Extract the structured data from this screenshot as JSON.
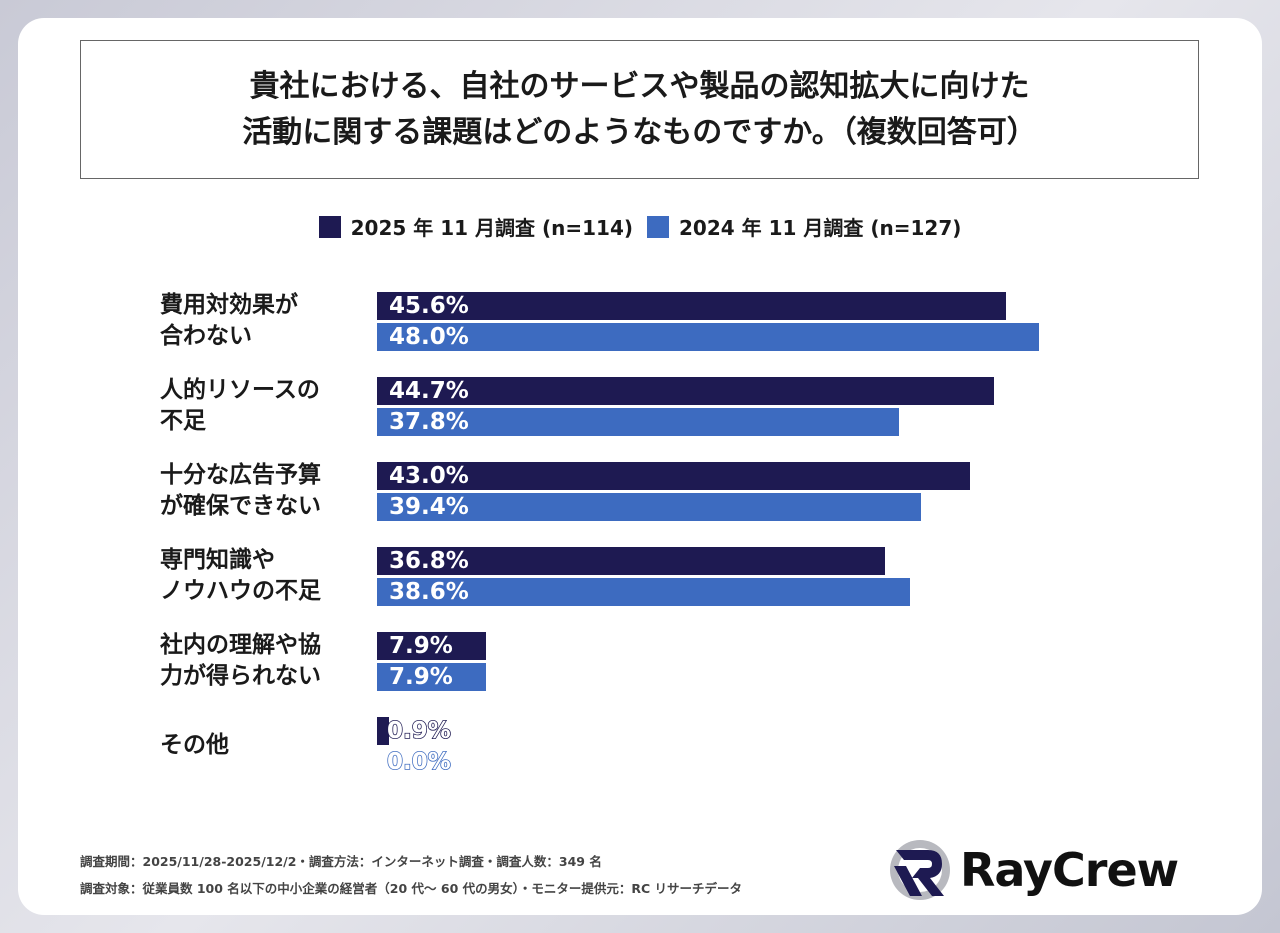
{
  "chart_data": {
    "type": "bar",
    "orientation": "horizontal",
    "title": [
      "貴社における、自社のサービスや製品の認知拡大に向けた",
      "活動に関する課題はどのようなものですか。（複数回答可）"
    ],
    "categories": [
      [
        "費用対効果が",
        "合わない"
      ],
      [
        "人的リソースの",
        "不足"
      ],
      [
        "十分な広告予算",
        "が確保できない"
      ],
      [
        "専門知識や",
        "ノウハウの不足"
      ],
      [
        "社内の理解や協",
        "力が得られない"
      ],
      [
        "その他"
      ]
    ],
    "series": [
      {
        "name": "2025 年 11 月調査 (n=114)",
        "color": "#1e1a52",
        "values": [
          45.6,
          44.7,
          43.0,
          36.8,
          7.9,
          0.9
        ]
      },
      {
        "name": "2024 年 11 月調査 (n=127)",
        "color": "#3d6bc0",
        "values": [
          48.0,
          37.8,
          39.4,
          38.6,
          7.9,
          0.0
        ]
      }
    ],
    "unit": "%",
    "legend": "top-center",
    "grid": false
  },
  "footer": {
    "line1": "調査期間：2025/11/28-2025/12/2・調査方法：インターネット調査・調査人数：349 名",
    "line2": "調査対象：従業員数 100 名以下の中小企業の経営者（20 代～ 60 代の男女）・モニター提供元：RC リサーチデータ"
  },
  "logo": {
    "text": "RayCrew"
  }
}
